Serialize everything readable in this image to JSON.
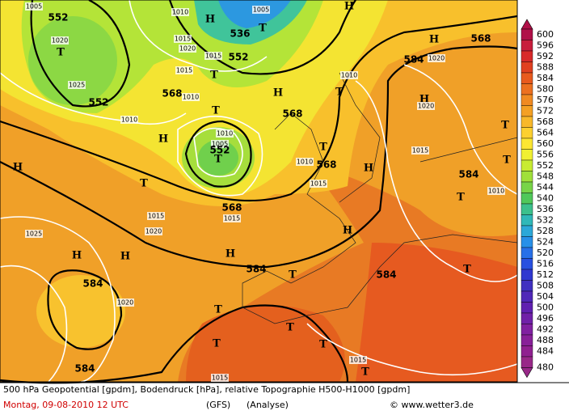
{
  "map": {
    "labels": [
      "552",
      "1020",
      "T",
      "1005",
      "1025",
      "552",
      "1010",
      "H",
      "T",
      "1015",
      "1020",
      "1025",
      "H",
      "H",
      "H",
      "584",
      "1020",
      "584",
      "568",
      "1010",
      "T",
      "1010",
      "1005",
      "552",
      "T",
      "568",
      "1015",
      "1015",
      "T",
      "552",
      "536",
      "T",
      "1005",
      "1010",
      "H",
      "1015",
      "1020",
      "1015",
      "H",
      "568",
      "T",
      "1010",
      "568",
      "1015",
      "H",
      "1015",
      "568",
      "H",
      "584",
      "1020",
      "1010",
      "T",
      "H",
      "1020",
      "T",
      "T",
      "584",
      "1010",
      "T",
      "H",
      "H",
      "584",
      "T",
      "584",
      "T",
      "T",
      "T",
      "T",
      "T",
      "T",
      "1015",
      "1015",
      "H"
    ]
  },
  "legend": {
    "levels": [
      600,
      596,
      592,
      588,
      584,
      580,
      576,
      572,
      568,
      564,
      560,
      556,
      552,
      548,
      544,
      540,
      536,
      532,
      528,
      524,
      520,
      516,
      512,
      508,
      504,
      500,
      496,
      492,
      488,
      484,
      480
    ],
    "colors": [
      "#b01048",
      "#c81e3c",
      "#d82a2a",
      "#e04020",
      "#e85a1e",
      "#ec7020",
      "#f08a22",
      "#f4a024",
      "#f8b82a",
      "#fcd030",
      "#fce632",
      "#f0f032",
      "#c8ec32",
      "#a0e03a",
      "#78d448",
      "#50c85a",
      "#3cc08c",
      "#30b8b8",
      "#2ca8d8",
      "#2890e8",
      "#2870e8",
      "#2850e0",
      "#3038d0",
      "#4030c0",
      "#5028b8",
      "#6020b0",
      "#7020a8",
      "#8020a0",
      "#882098",
      "#902090",
      "#982888"
    ]
  },
  "footer": {
    "caption": "500 hPa Geopotential [gpdm], Bodendruck [hPa], relative Topographie H500-H1000 [gpdm]",
    "date": "Montag, 09-08-2010  12 UTC",
    "model": "(GFS)",
    "run": "(Analyse)",
    "credit": "© www.wetter3.de"
  }
}
